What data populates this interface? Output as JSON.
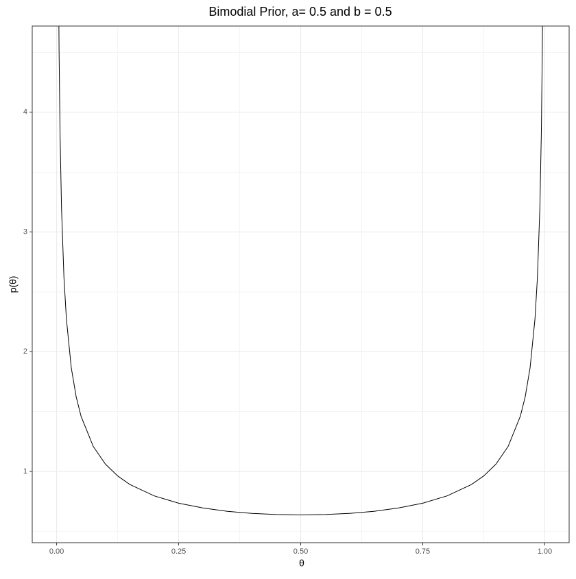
{
  "chart_data": {
    "type": "line",
    "title": "Bimodial Prior, a= 0.5 and b = 0.5",
    "x_label": "θ",
    "y_label": "p(θ)",
    "x": [
      0.003,
      0.004,
      0.005,
      0.007,
      0.01,
      0.015,
      0.02,
      0.03,
      0.04,
      0.05,
      0.075,
      0.1,
      0.125,
      0.15,
      0.2,
      0.25,
      0.3,
      0.35,
      0.4,
      0.45,
      0.5,
      0.55,
      0.6,
      0.65,
      0.7,
      0.75,
      0.8,
      0.85,
      0.875,
      0.9,
      0.925,
      0.95,
      0.96,
      0.97,
      0.98,
      0.985,
      0.99,
      0.993,
      0.995,
      0.996,
      0.997
    ],
    "series": [
      {
        "name": "density",
        "color": "#000000",
        "values": [
          5.82,
          5.043,
          4.513,
          3.818,
          3.199,
          2.619,
          2.274,
          1.866,
          1.624,
          1.461,
          1.209,
          1.061,
          0.9625,
          0.891,
          0.796,
          0.735,
          0.695,
          0.667,
          0.65,
          0.64,
          0.6366,
          0.64,
          0.65,
          0.667,
          0.695,
          0.735,
          0.796,
          0.891,
          0.9625,
          1.061,
          1.209,
          1.461,
          1.624,
          1.866,
          2.274,
          2.619,
          3.199,
          3.818,
          4.513,
          5.043,
          5.82
        ]
      }
    ],
    "xlim": [
      -0.05,
      1.05
    ],
    "ylim": [
      0.405,
      4.72
    ],
    "xticks": [
      {
        "value": 0,
        "label": "0.00"
      },
      {
        "value": 0.25,
        "label": "0.25"
      },
      {
        "value": 0.5,
        "label": "0.50"
      },
      {
        "value": 0.75,
        "label": "0.75"
      },
      {
        "value": 1,
        "label": "1.00"
      }
    ],
    "yticks": [
      1,
      2,
      3,
      4
    ],
    "grid": true
  }
}
